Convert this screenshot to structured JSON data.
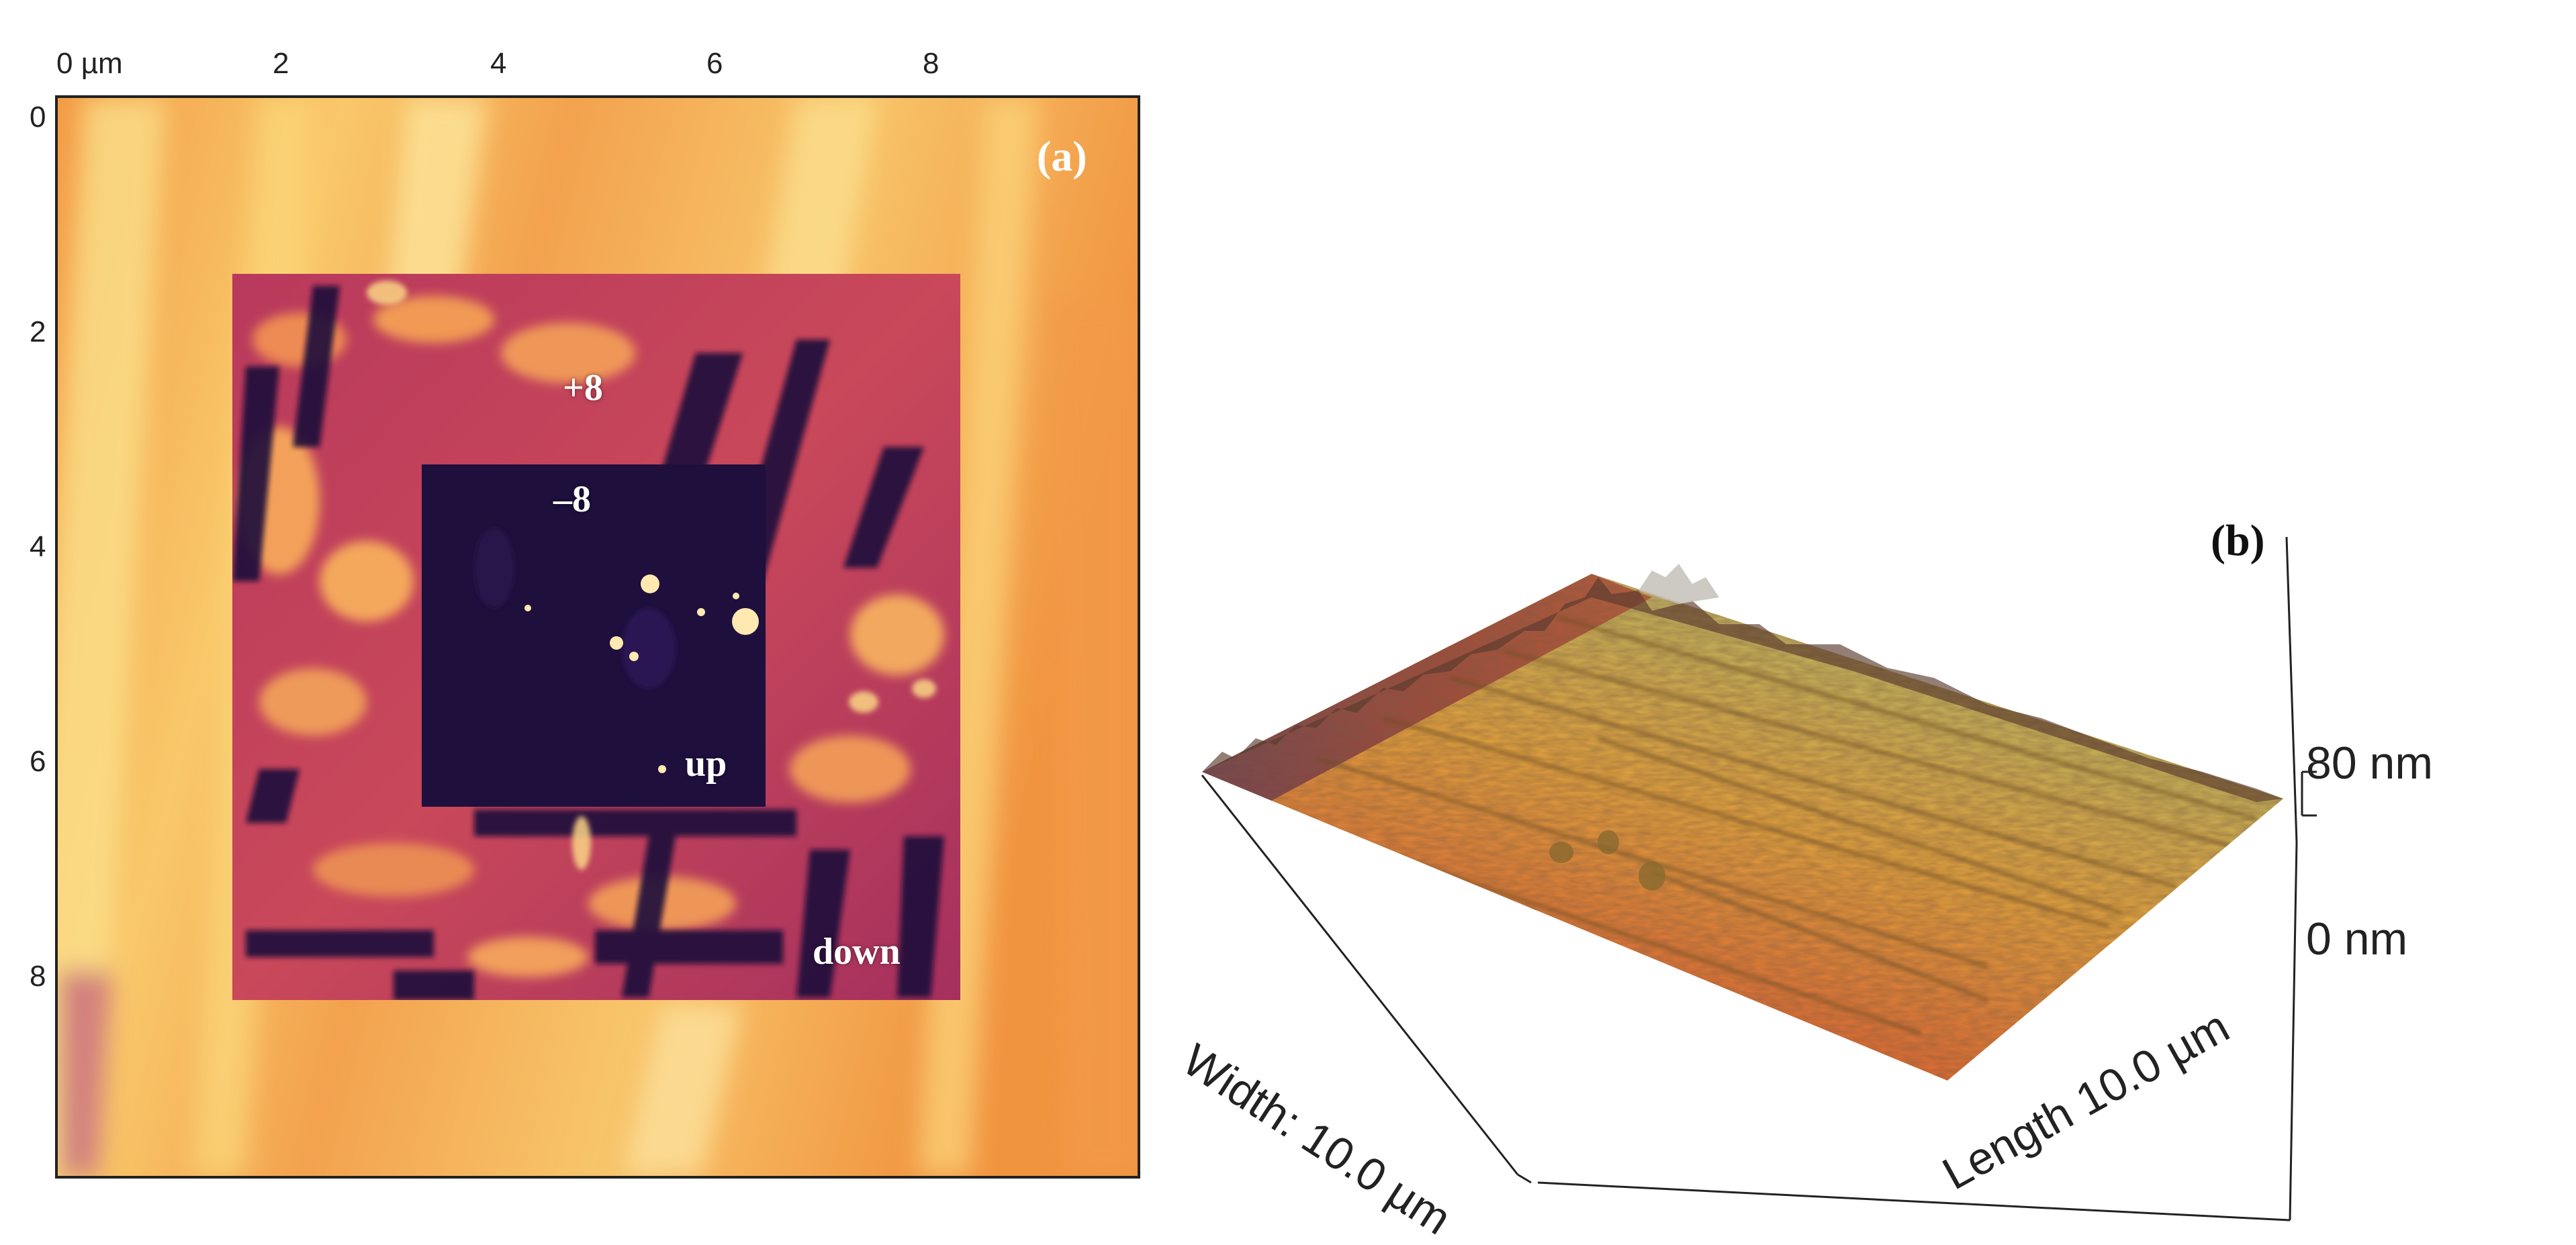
{
  "panel_a": {
    "label": "(a)",
    "x_ticks": [
      "0 µm",
      "2",
      "4",
      "6",
      "8"
    ],
    "y_ticks": [
      "0",
      "2",
      "4",
      "6",
      "8"
    ],
    "annotations": {
      "plus8": "+8",
      "minus8": "–8",
      "up": "up",
      "down": "down"
    },
    "colormap": [
      "#1e0c3a",
      "#6a1f6e",
      "#c4415c",
      "#ee7b3c",
      "#f7b44a",
      "#fbe08a"
    ]
  },
  "panel_b": {
    "label": "(b)",
    "z_max": "80 nm",
    "z_min": "0 nm",
    "width_label": "Width: 10.0 µm",
    "length_label": "Length 10.0 µm"
  }
}
